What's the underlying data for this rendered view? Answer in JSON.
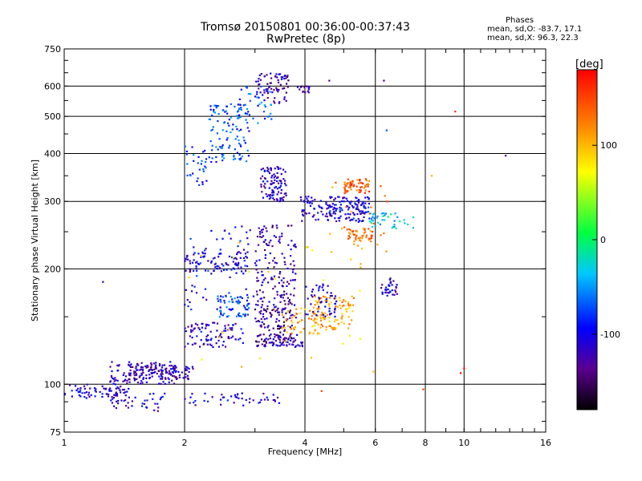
{
  "header": {
    "title_line1": "Tromsø 20150801 00:36:00-00:37:43",
    "title_line2": "RwPretec (8p)",
    "phases_heading": "Phases",
    "phases_o": "mean, sd,O: -83.7, 17.1",
    "phases_x": "mean, sd,X:  96.3, 22.3"
  },
  "chart_data": {
    "type": "scatter",
    "title": "Tromsø 20150801 00:36:00-00:37:43",
    "subtitle": "RwPretec (8p)",
    "xlabel": "Frequency [MHz]",
    "ylabel": "Stationary phase Virtual Height [km]",
    "x_scale": "log",
    "y_scale": "log",
    "xlim": [
      1,
      16
    ],
    "ylim": [
      75,
      750
    ],
    "x_ticks": [
      1,
      2,
      4,
      6,
      8,
      10,
      16
    ],
    "x_tick_labels": [
      "1",
      "2",
      "4",
      "6",
      "8",
      "10",
      "16"
    ],
    "y_ticks": [
      75,
      100,
      200,
      300,
      400,
      500,
      600,
      750
    ],
    "y_tick_labels": [
      "75",
      "100",
      "200",
      "300",
      "400",
      "500",
      "600",
      "750"
    ],
    "grid": true,
    "colorbar": {
      "label": "[deg]",
      "range": [
        -180,
        180
      ],
      "ticks": [
        100,
        0,
        -100
      ],
      "tick_labels": [
        "100",
        "0",
        "-100"
      ]
    },
    "clusters": [
      {
        "x": [
          1.0,
          1.45
        ],
        "y": [
          92,
          100
        ],
        "phase": -110,
        "count": 70
      },
      {
        "x": [
          1.3,
          1.9
        ],
        "y": [
          100,
          115
        ],
        "phase": -115,
        "count": 110
      },
      {
        "x": [
          1.45,
          2.1
        ],
        "y": [
          103,
          112
        ],
        "phase": -125,
        "count": 90
      },
      {
        "x": [
          1.3,
          1.8
        ],
        "y": [
          85,
          95
        ],
        "phase": -110,
        "count": 40
      },
      {
        "x": [
          2.0,
          3.5
        ],
        "y": [
          88,
          95
        ],
        "phase": -105,
        "count": 45
      },
      {
        "x": [
          2.0,
          2.9
        ],
        "y": [
          197,
          222
        ],
        "phase": -105,
        "count": 80
      },
      {
        "x": [
          2.0,
          2.8
        ],
        "y": [
          125,
          145
        ],
        "phase": -110,
        "count": 90
      },
      {
        "x": [
          2.4,
          2.9
        ],
        "y": [
          150,
          170
        ],
        "phase": -70,
        "count": 60
      },
      {
        "x": [
          2.0,
          3.0
        ],
        "y": [
          150,
          260
        ],
        "phase": -100,
        "count": 70
      },
      {
        "x": [
          2.0,
          2.3
        ],
        "y": [
          330,
          420
        ],
        "phase": -80,
        "count": 30
      },
      {
        "x": [
          2.3,
          2.9
        ],
        "y": [
          380,
          540
        ],
        "phase": -75,
        "count": 110
      },
      {
        "x": [
          2.7,
          3.3
        ],
        "y": [
          480,
          600
        ],
        "phase": -70,
        "count": 40
      },
      {
        "x": [
          3.0,
          3.65
        ],
        "y": [
          540,
          650
        ],
        "phase": -125,
        "count": 70
      },
      {
        "x": [
          3.8,
          4.1
        ],
        "y": [
          575,
          600
        ],
        "phase": -120,
        "count": 15
      },
      {
        "x": [
          3.1,
          3.6
        ],
        "y": [
          300,
          370
        ],
        "phase": -115,
        "count": 100
      },
      {
        "x": [
          3.0,
          3.8
        ],
        "y": [
          130,
          260
        ],
        "phase": -125,
        "count": 200
      },
      {
        "x": [
          3.0,
          4.0
        ],
        "y": [
          125,
          135
        ],
        "phase": -120,
        "count": 70
      },
      {
        "x": [
          3.0,
          3.7
        ],
        "y": [
          128,
          175
        ],
        "phase": -140,
        "count": 50
      },
      {
        "x": [
          3.5,
          4.4
        ],
        "y": [
          135,
          160
        ],
        "phase": 110,
        "count": 50
      },
      {
        "x": [
          4.2,
          5.3
        ],
        "y": [
          138,
          170
        ],
        "phase": 110,
        "count": 100
      },
      {
        "x": [
          4.0,
          4.8
        ],
        "y": [
          150,
          185
        ],
        "phase": -110,
        "count": 50
      },
      {
        "x": [
          3.9,
          5.8
        ],
        "y": [
          265,
          310
        ],
        "phase": -115,
        "count": 110
      },
      {
        "x": [
          4.6,
          5.8
        ],
        "y": [
          270,
          310
        ],
        "phase": -100,
        "count": 70
      },
      {
        "x": [
          5.0,
          5.8
        ],
        "y": [
          315,
          345
        ],
        "phase": 140,
        "count": 60
      },
      {
        "x": [
          5.1,
          5.9
        ],
        "y": [
          235,
          255
        ],
        "phase": 130,
        "count": 45
      },
      {
        "x": [
          5.8,
          7.5
        ],
        "y": [
          255,
          280
        ],
        "phase": -30,
        "count": 40
      },
      {
        "x": [
          6.2,
          6.8
        ],
        "y": [
          170,
          190
        ],
        "phase": -110,
        "count": 35
      },
      {
        "x": [
          4.5,
          6.5
        ],
        "y": [
          200,
          340
        ],
        "phase": 120,
        "count": 30
      },
      {
        "x": [
          2.0,
          6.0
        ],
        "y": [
          95,
          240
        ],
        "phase": 80,
        "count": 30
      }
    ],
    "isolated_points": [
      {
        "x": 1.25,
        "y": 185,
        "phase": -120
      },
      {
        "x": 4.6,
        "y": 620,
        "phase": -140
      },
      {
        "x": 6.3,
        "y": 620,
        "phase": -140
      },
      {
        "x": 6.4,
        "y": 460,
        "phase": -70
      },
      {
        "x": 9.5,
        "y": 515,
        "phase": 160
      },
      {
        "x": 12.7,
        "y": 395,
        "phase": -140
      },
      {
        "x": 10.0,
        "y": 110,
        "phase": 170
      },
      {
        "x": 9.8,
        "y": 107,
        "phase": 170
      },
      {
        "x": 7.9,
        "y": 97,
        "phase": 150
      },
      {
        "x": 4.4,
        "y": 96,
        "phase": 150
      },
      {
        "x": 8.3,
        "y": 350,
        "phase": 100
      }
    ]
  }
}
